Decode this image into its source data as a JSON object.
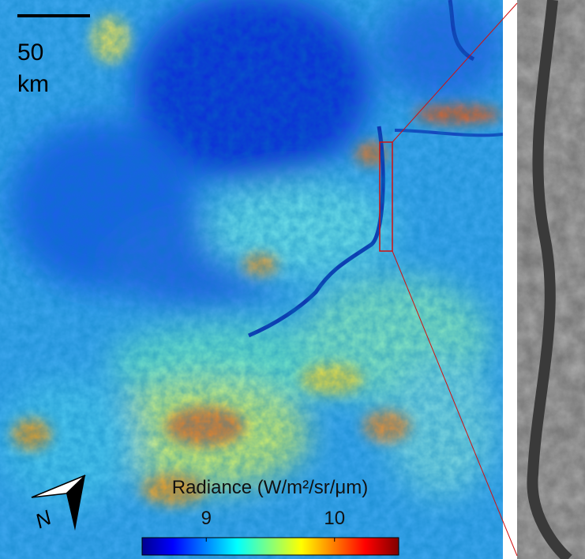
{
  "scale_bar": {
    "value": 50,
    "unit": "km"
  },
  "north_label": "N",
  "colorbar": {
    "title": "Radiance (W/m²/sr/μm)",
    "clim": [
      8.5,
      10.5
    ],
    "ticks": [
      9,
      10
    ]
  }
}
